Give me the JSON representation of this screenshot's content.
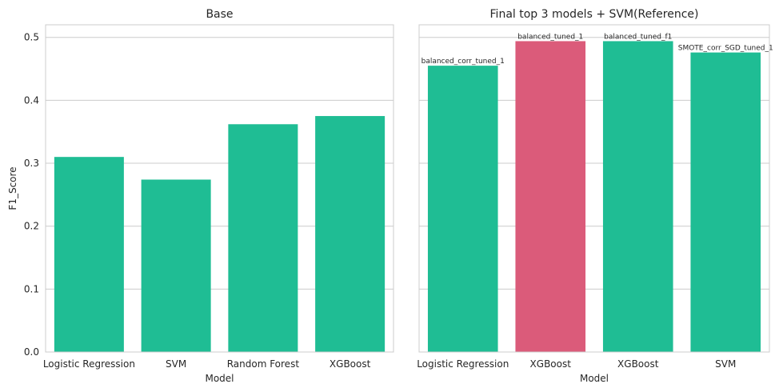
{
  "chart_data": [
    {
      "type": "bar",
      "title": "Base",
      "xlabel": "Model",
      "ylabel": "F1_Score",
      "ylim": [
        0,
        0.52
      ],
      "yticks": [
        "0.0",
        "0.1",
        "0.2",
        "0.3",
        "0.4",
        "0.5"
      ],
      "grid": "horizontal",
      "categories": [
        "Logistic Regression",
        "SVM",
        "Random Forest",
        "XGBoost"
      ],
      "values": [
        0.31,
        0.274,
        0.362,
        0.375
      ],
      "bar_labels": [
        "",
        "",
        "",
        ""
      ],
      "colors": [
        "#1fbd94",
        "#1fbd94",
        "#1fbd94",
        "#1fbd94"
      ]
    },
    {
      "type": "bar",
      "title": "Final top 3 models + SVM(Reference)",
      "xlabel": "Model",
      "ylabel": "",
      "ylim": [
        0,
        0.52
      ],
      "yticks": [],
      "grid": "horizontal",
      "categories": [
        "Logistic Regression",
        "XGBoost",
        "XGBoost",
        "SVM"
      ],
      "values": [
        0.455,
        0.494,
        0.494,
        0.476
      ],
      "bar_labels": [
        "balanced_corr_tuned_1",
        "balanced_tuned_1",
        "balanced_tuned_f1",
        "SMOTE_corr_SGD_tuned_1"
      ],
      "colors": [
        "#1fbd94",
        "#db5b7a",
        "#1fbd94",
        "#1fbd94"
      ]
    }
  ]
}
